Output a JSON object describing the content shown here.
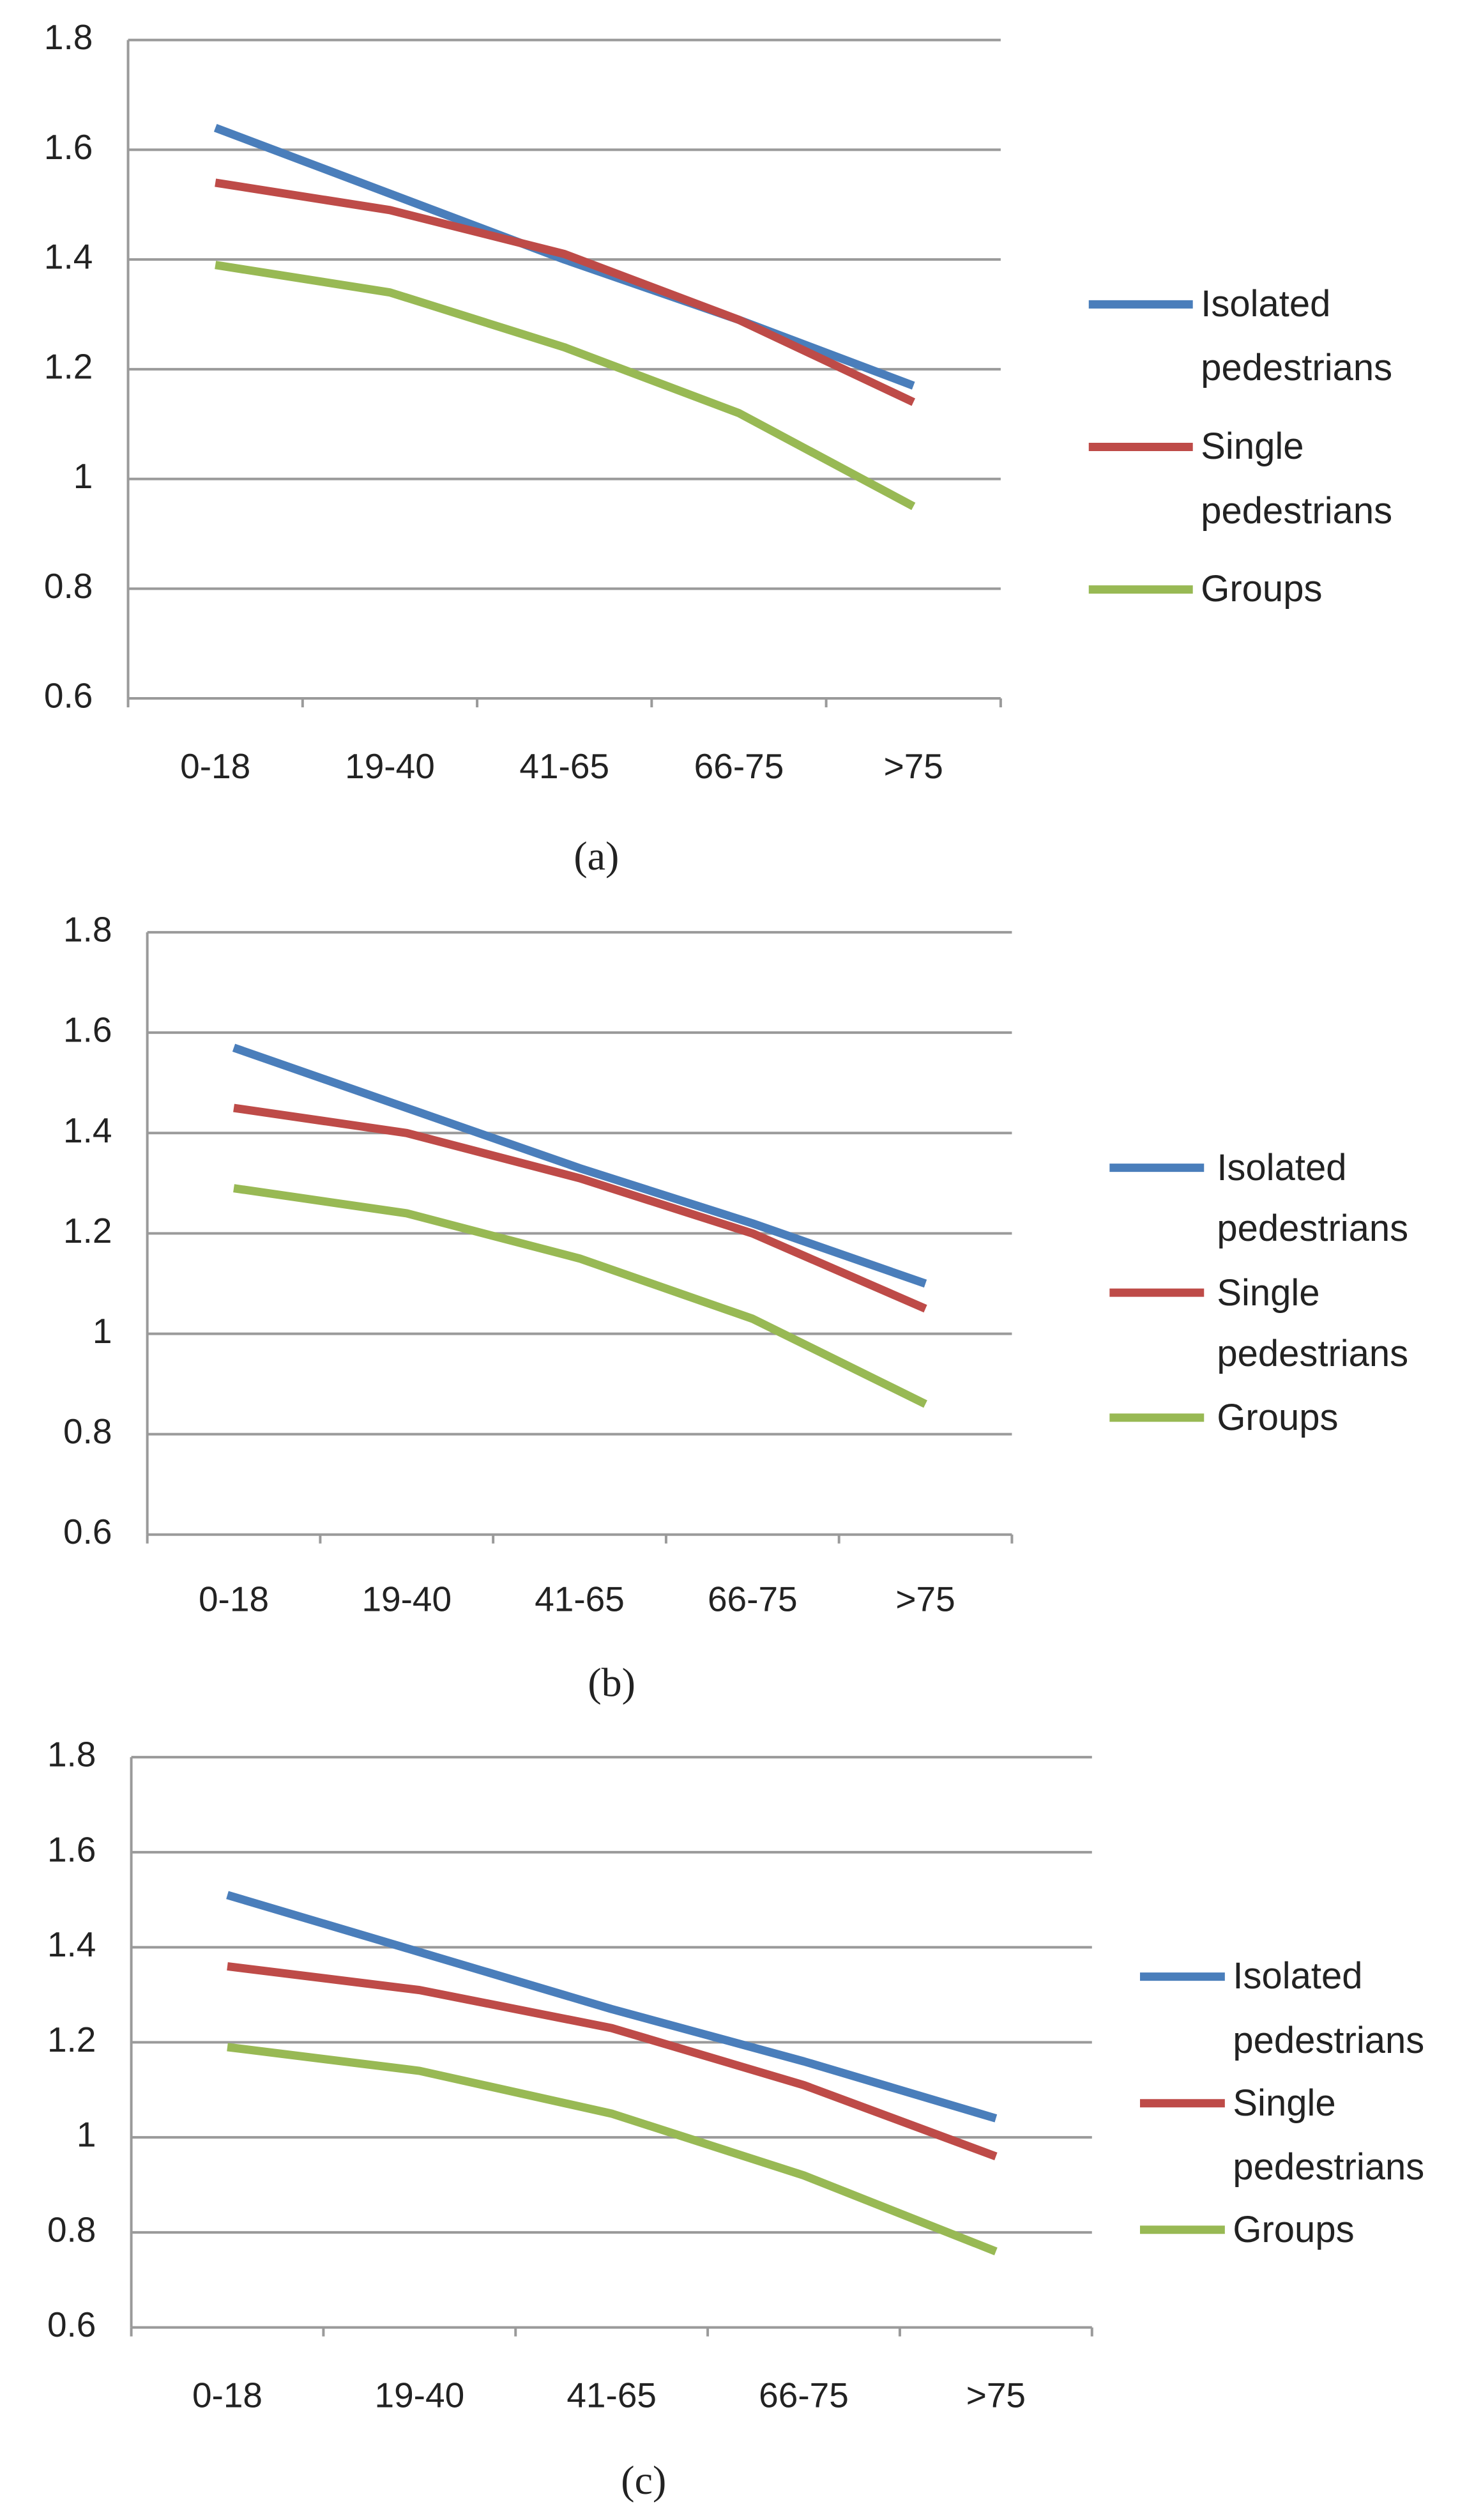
{
  "chart_data": [
    {
      "type": "line",
      "caption": "(a)",
      "categories": [
        "0-18",
        "19-40",
        "41-65",
        "66-75",
        ">75"
      ],
      "series": [
        {
          "name": "Isolated pedestrians",
          "color": "#4a7ebb",
          "values": [
            1.64,
            1.52,
            1.4,
            1.29,
            1.17
          ]
        },
        {
          "name": "Single pedestrians",
          "color": "#be4b48",
          "values": [
            1.54,
            1.49,
            1.41,
            1.29,
            1.14
          ]
        },
        {
          "name": "Groups",
          "color": "#98b954",
          "values": [
            1.39,
            1.34,
            1.24,
            1.12,
            0.95
          ]
        }
      ],
      "ylim": [
        0.6,
        1.8
      ],
      "yticks": [
        0.6,
        0.8,
        1,
        1.2,
        1.4,
        1.6,
        1.8
      ],
      "grid": true,
      "legend": "right"
    },
    {
      "type": "line",
      "caption": "(b)",
      "categories": [
        "0-18",
        "19-40",
        "41-65",
        "66-75",
        ">75"
      ],
      "series": [
        {
          "name": "Isolated pedestrians",
          "color": "#4a7ebb",
          "values": [
            1.57,
            1.45,
            1.33,
            1.22,
            1.1
          ]
        },
        {
          "name": "Single pedestrians",
          "color": "#be4b48",
          "values": [
            1.45,
            1.4,
            1.31,
            1.2,
            1.05
          ]
        },
        {
          "name": "Groups",
          "color": "#98b954",
          "values": [
            1.29,
            1.24,
            1.15,
            1.03,
            0.86
          ]
        }
      ],
      "ylim": [
        0.6,
        1.8
      ],
      "yticks": [
        0.6,
        0.8,
        1,
        1.2,
        1.4,
        1.6,
        1.8
      ],
      "grid": true,
      "legend": "right"
    },
    {
      "type": "line",
      "caption": "(c)",
      "categories": [
        "0-18",
        "19-40",
        "41-65",
        "66-75",
        ">75"
      ],
      "series": [
        {
          "name": "Isolated pedestrians",
          "color": "#4a7ebb",
          "values": [
            1.51,
            1.39,
            1.27,
            1.16,
            1.04
          ]
        },
        {
          "name": "Single pedestrians",
          "color": "#be4b48",
          "values": [
            1.36,
            1.31,
            1.23,
            1.11,
            0.96
          ]
        },
        {
          "name": "Groups",
          "color": "#98b954",
          "values": [
            1.19,
            1.14,
            1.05,
            0.92,
            0.76
          ]
        }
      ],
      "ylim": [
        0.6,
        1.8
      ],
      "yticks": [
        0.6,
        0.8,
        1,
        1.2,
        1.4,
        1.6,
        1.8
      ],
      "grid": true,
      "legend": "right"
    }
  ]
}
